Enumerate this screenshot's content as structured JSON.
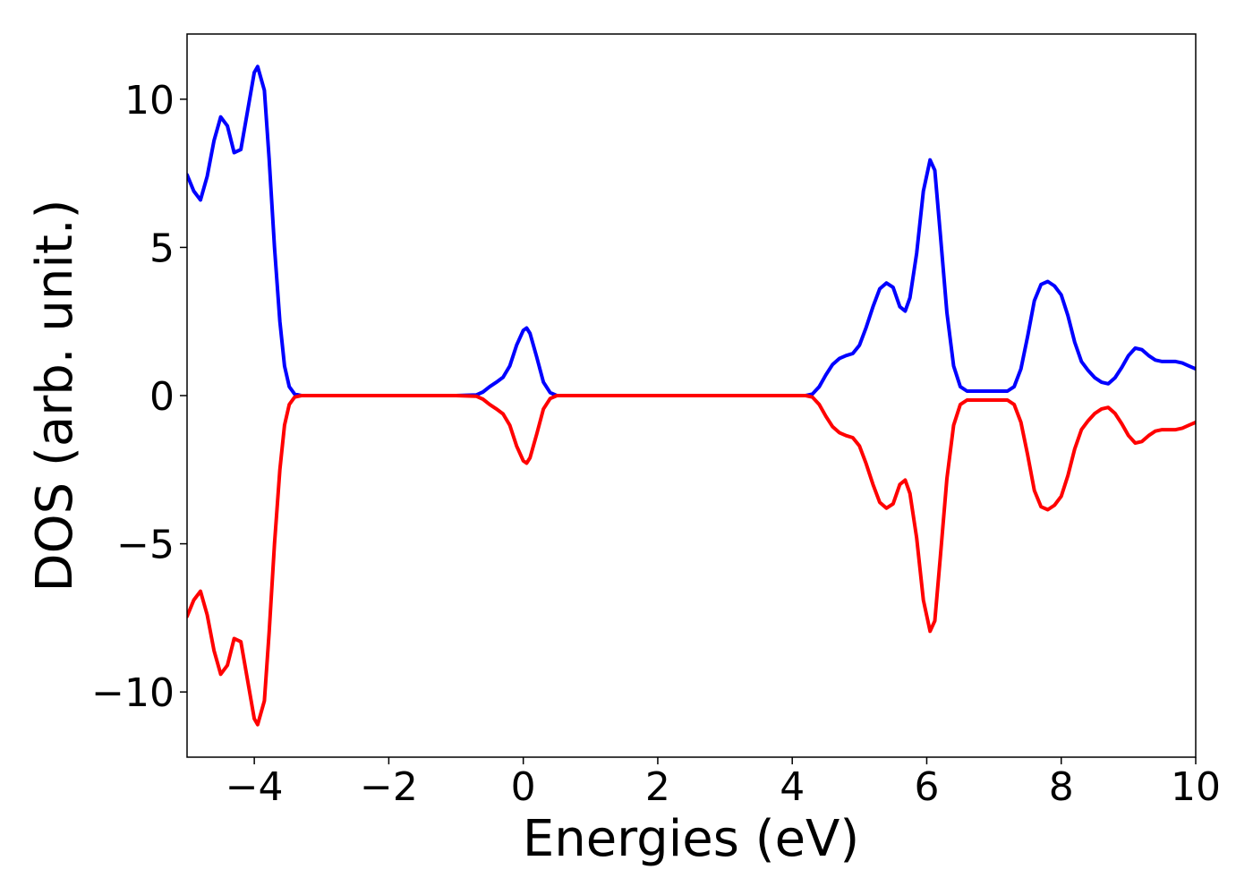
{
  "chart_data": {
    "type": "line",
    "title": "",
    "xlabel": "Energies (eV)",
    "ylabel": "DOS (arb. unit.)",
    "xlim": [
      -5,
      10
    ],
    "ylim": [
      -12.2,
      12.2
    ],
    "x_ticks": [
      -4,
      -2,
      0,
      2,
      4,
      6,
      8,
      10
    ],
    "x_tick_labels": [
      "−4",
      "−2",
      "0",
      "2",
      "4",
      "6",
      "8",
      "10"
    ],
    "y_ticks": [
      -10,
      -5,
      0,
      5,
      10
    ],
    "y_tick_labels": [
      "−10",
      "−5",
      "0",
      "5",
      "10"
    ],
    "grid": false,
    "legend": "none",
    "series": [
      {
        "color": "#0000ff",
        "points": [
          [
            -5.0,
            7.45
          ],
          [
            -4.9,
            6.9
          ],
          [
            -4.8,
            6.6
          ],
          [
            -4.7,
            7.4
          ],
          [
            -4.6,
            8.6
          ],
          [
            -4.5,
            9.4
          ],
          [
            -4.4,
            9.1
          ],
          [
            -4.3,
            8.2
          ],
          [
            -4.2,
            8.3
          ],
          [
            -4.1,
            9.6
          ],
          [
            -4.0,
            10.9
          ],
          [
            -3.95,
            11.1
          ],
          [
            -3.85,
            10.3
          ],
          [
            -3.78,
            8.0
          ],
          [
            -3.7,
            5.0
          ],
          [
            -3.62,
            2.5
          ],
          [
            -3.55,
            1.0
          ],
          [
            -3.48,
            0.3
          ],
          [
            -3.4,
            0.05
          ],
          [
            -3.3,
            0.0
          ],
          [
            -1.0,
            0.0
          ],
          [
            -0.7,
            0.02
          ],
          [
            -0.6,
            0.12
          ],
          [
            -0.5,
            0.3
          ],
          [
            -0.4,
            0.45
          ],
          [
            -0.3,
            0.62
          ],
          [
            -0.2,
            1.0
          ],
          [
            -0.1,
            1.7
          ],
          [
            0.0,
            2.2
          ],
          [
            0.05,
            2.28
          ],
          [
            0.1,
            2.1
          ],
          [
            0.2,
            1.3
          ],
          [
            0.3,
            0.45
          ],
          [
            0.4,
            0.1
          ],
          [
            0.5,
            0.0
          ],
          [
            4.2,
            0.0
          ],
          [
            4.3,
            0.05
          ],
          [
            4.4,
            0.3
          ],
          [
            4.5,
            0.7
          ],
          [
            4.6,
            1.05
          ],
          [
            4.7,
            1.25
          ],
          [
            4.8,
            1.35
          ],
          [
            4.9,
            1.42
          ],
          [
            5.0,
            1.7
          ],
          [
            5.1,
            2.3
          ],
          [
            5.2,
            3.0
          ],
          [
            5.3,
            3.6
          ],
          [
            5.4,
            3.8
          ],
          [
            5.5,
            3.65
          ],
          [
            5.6,
            3.0
          ],
          [
            5.68,
            2.85
          ],
          [
            5.75,
            3.3
          ],
          [
            5.85,
            4.8
          ],
          [
            5.95,
            6.9
          ],
          [
            6.05,
            7.95
          ],
          [
            6.12,
            7.6
          ],
          [
            6.2,
            5.5
          ],
          [
            6.3,
            2.8
          ],
          [
            6.4,
            1.0
          ],
          [
            6.5,
            0.3
          ],
          [
            6.6,
            0.15
          ],
          [
            7.2,
            0.15
          ],
          [
            7.3,
            0.3
          ],
          [
            7.4,
            0.9
          ],
          [
            7.5,
            2.0
          ],
          [
            7.6,
            3.2
          ],
          [
            7.7,
            3.75
          ],
          [
            7.8,
            3.85
          ],
          [
            7.9,
            3.7
          ],
          [
            8.0,
            3.4
          ],
          [
            8.1,
            2.7
          ],
          [
            8.2,
            1.8
          ],
          [
            8.3,
            1.15
          ],
          [
            8.4,
            0.85
          ],
          [
            8.5,
            0.6
          ],
          [
            8.6,
            0.45
          ],
          [
            8.7,
            0.4
          ],
          [
            8.8,
            0.6
          ],
          [
            8.9,
            0.95
          ],
          [
            9.0,
            1.35
          ],
          [
            9.1,
            1.6
          ],
          [
            9.2,
            1.55
          ],
          [
            9.3,
            1.35
          ],
          [
            9.4,
            1.2
          ],
          [
            9.5,
            1.15
          ],
          [
            9.6,
            1.15
          ],
          [
            9.7,
            1.15
          ],
          [
            9.8,
            1.1
          ],
          [
            9.9,
            1.0
          ],
          [
            10.0,
            0.9
          ]
        ]
      },
      {
        "color": "#ff0000",
        "points": [
          [
            -5.0,
            -7.45
          ],
          [
            -4.9,
            -6.9
          ],
          [
            -4.8,
            -6.6
          ],
          [
            -4.7,
            -7.4
          ],
          [
            -4.6,
            -8.6
          ],
          [
            -4.5,
            -9.4
          ],
          [
            -4.4,
            -9.1
          ],
          [
            -4.3,
            -8.2
          ],
          [
            -4.2,
            -8.3
          ],
          [
            -4.1,
            -9.6
          ],
          [
            -4.0,
            -10.9
          ],
          [
            -3.95,
            -11.1
          ],
          [
            -3.85,
            -10.3
          ],
          [
            -3.78,
            -8.0
          ],
          [
            -3.7,
            -5.0
          ],
          [
            -3.62,
            -2.5
          ],
          [
            -3.55,
            -1.0
          ],
          [
            -3.48,
            -0.3
          ],
          [
            -3.4,
            -0.05
          ],
          [
            -3.3,
            0.0
          ],
          [
            -1.0,
            0.0
          ],
          [
            -0.7,
            -0.02
          ],
          [
            -0.6,
            -0.12
          ],
          [
            -0.5,
            -0.3
          ],
          [
            -0.4,
            -0.45
          ],
          [
            -0.3,
            -0.62
          ],
          [
            -0.2,
            -1.0
          ],
          [
            -0.1,
            -1.7
          ],
          [
            0.0,
            -2.2
          ],
          [
            0.05,
            -2.28
          ],
          [
            0.1,
            -2.1
          ],
          [
            0.2,
            -1.3
          ],
          [
            0.3,
            -0.45
          ],
          [
            0.4,
            -0.1
          ],
          [
            0.5,
            0.0
          ],
          [
            4.2,
            0.0
          ],
          [
            4.3,
            -0.05
          ],
          [
            4.4,
            -0.3
          ],
          [
            4.5,
            -0.7
          ],
          [
            4.6,
            -1.05
          ],
          [
            4.7,
            -1.25
          ],
          [
            4.8,
            -1.35
          ],
          [
            4.9,
            -1.42
          ],
          [
            5.0,
            -1.7
          ],
          [
            5.1,
            -2.3
          ],
          [
            5.2,
            -3.0
          ],
          [
            5.3,
            -3.6
          ],
          [
            5.4,
            -3.8
          ],
          [
            5.5,
            -3.65
          ],
          [
            5.6,
            -3.0
          ],
          [
            5.68,
            -2.85
          ],
          [
            5.75,
            -3.3
          ],
          [
            5.85,
            -4.8
          ],
          [
            5.95,
            -6.9
          ],
          [
            6.05,
            -7.95
          ],
          [
            6.12,
            -7.6
          ],
          [
            6.2,
            -5.5
          ],
          [
            6.3,
            -2.8
          ],
          [
            6.4,
            -1.0
          ],
          [
            6.5,
            -0.3
          ],
          [
            6.6,
            -0.15
          ],
          [
            7.2,
            -0.15
          ],
          [
            7.3,
            -0.3
          ],
          [
            7.4,
            -0.9
          ],
          [
            7.5,
            -2.0
          ],
          [
            7.6,
            -3.2
          ],
          [
            7.7,
            -3.75
          ],
          [
            7.8,
            -3.85
          ],
          [
            7.9,
            -3.7
          ],
          [
            8.0,
            -3.4
          ],
          [
            8.1,
            -2.7
          ],
          [
            8.2,
            -1.8
          ],
          [
            8.3,
            -1.15
          ],
          [
            8.4,
            -0.85
          ],
          [
            8.5,
            -0.6
          ],
          [
            8.6,
            -0.45
          ],
          [
            8.7,
            -0.4
          ],
          [
            8.8,
            -0.6
          ],
          [
            8.9,
            -0.95
          ],
          [
            9.0,
            -1.35
          ],
          [
            9.1,
            -1.6
          ],
          [
            9.2,
            -1.55
          ],
          [
            9.3,
            -1.35
          ],
          [
            9.4,
            -1.2
          ],
          [
            9.5,
            -1.15
          ],
          [
            9.6,
            -1.15
          ],
          [
            9.7,
            -1.15
          ],
          [
            9.8,
            -1.1
          ],
          [
            9.9,
            -1.0
          ],
          [
            10.0,
            -0.9
          ]
        ]
      }
    ]
  }
}
